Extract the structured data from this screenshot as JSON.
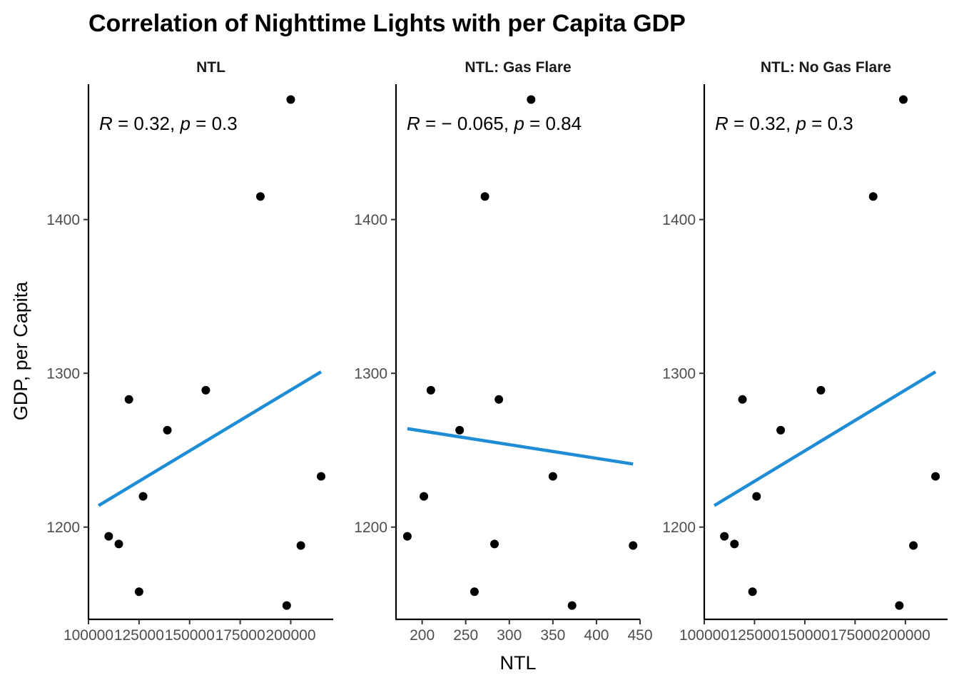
{
  "chart_data": {
    "type": "scatter",
    "title": "Correlation of Nighttime Lights with per Capita GDP",
    "xlabel": "NTL",
    "ylabel": "GDP, per Capita",
    "colors": {
      "points": "#000000",
      "fit_line": "#1f8dd6"
    },
    "grid": false,
    "ylim": [
      1140,
      1488
    ],
    "y_ticks": [
      1200,
      1300,
      1400
    ],
    "panels": [
      {
        "strip": "NTL",
        "stat": {
          "r_symbol": "R",
          "r_text": " = 0.32, ",
          "p_symbol": "p",
          "p_text": " = 0.3"
        },
        "xlim": [
          100000,
          221000
        ],
        "x_ticks": [
          100000,
          125000,
          150000,
          175000,
          200000
        ],
        "x_tick_labels": [
          "100000",
          "125000",
          "150000",
          "175000",
          "200000"
        ],
        "points": [
          {
            "x": 200000,
            "y": 1478
          },
          {
            "x": 185000,
            "y": 1415
          },
          {
            "x": 158000,
            "y": 1289
          },
          {
            "x": 120000,
            "y": 1283
          },
          {
            "x": 139000,
            "y": 1263
          },
          {
            "x": 127000,
            "y": 1220
          },
          {
            "x": 110000,
            "y": 1194
          },
          {
            "x": 115000,
            "y": 1189
          },
          {
            "x": 205000,
            "y": 1188
          },
          {
            "x": 215000,
            "y": 1233
          },
          {
            "x": 125000,
            "y": 1158
          },
          {
            "x": 198000,
            "y": 1149
          }
        ],
        "fit": [
          {
            "x": 105000,
            "y": 1214
          },
          {
            "x": 215000,
            "y": 1301
          }
        ]
      },
      {
        "strip": "NTL: Gas Flare",
        "stat": {
          "r_symbol": "R",
          "r_text": " = − 0.065, ",
          "p_symbol": "p",
          "p_text": " = 0.84"
        },
        "xlim": [
          170,
          450
        ],
        "x_ticks": [
          200,
          250,
          300,
          350,
          400,
          450
        ],
        "x_tick_labels": [
          "200",
          "250",
          "300",
          "350",
          "400",
          "450"
        ],
        "points": [
          {
            "x": 325,
            "y": 1478
          },
          {
            "x": 272,
            "y": 1415
          },
          {
            "x": 210,
            "y": 1289
          },
          {
            "x": 288,
            "y": 1283
          },
          {
            "x": 243,
            "y": 1263
          },
          {
            "x": 202,
            "y": 1220
          },
          {
            "x": 183,
            "y": 1194
          },
          {
            "x": 283,
            "y": 1189
          },
          {
            "x": 442,
            "y": 1188
          },
          {
            "x": 350,
            "y": 1233
          },
          {
            "x": 260,
            "y": 1158
          },
          {
            "x": 372,
            "y": 1149
          }
        ],
        "fit": [
          {
            "x": 183,
            "y": 1264
          },
          {
            "x": 442,
            "y": 1241
          }
        ]
      },
      {
        "strip": "NTL: No Gas Flare",
        "stat": {
          "r_symbol": "R",
          "r_text": " = 0.32, ",
          "p_symbol": "p",
          "p_text": " = 0.3"
        },
        "xlim": [
          100000,
          221000
        ],
        "x_ticks": [
          100000,
          125000,
          150000,
          175000,
          200000
        ],
        "x_tick_labels": [
          "100000",
          "125000",
          "150000",
          "175000",
          "200000"
        ],
        "points": [
          {
            "x": 199000,
            "y": 1478
          },
          {
            "x": 184000,
            "y": 1415
          },
          {
            "x": 158000,
            "y": 1289
          },
          {
            "x": 119000,
            "y": 1283
          },
          {
            "x": 138000,
            "y": 1263
          },
          {
            "x": 126000,
            "y": 1220
          },
          {
            "x": 110000,
            "y": 1194
          },
          {
            "x": 115000,
            "y": 1189
          },
          {
            "x": 204000,
            "y": 1188
          },
          {
            "x": 215000,
            "y": 1233
          },
          {
            "x": 124000,
            "y": 1158
          },
          {
            "x": 197000,
            "y": 1149
          }
        ],
        "fit": [
          {
            "x": 105000,
            "y": 1214
          },
          {
            "x": 215000,
            "y": 1301
          }
        ]
      }
    ]
  }
}
